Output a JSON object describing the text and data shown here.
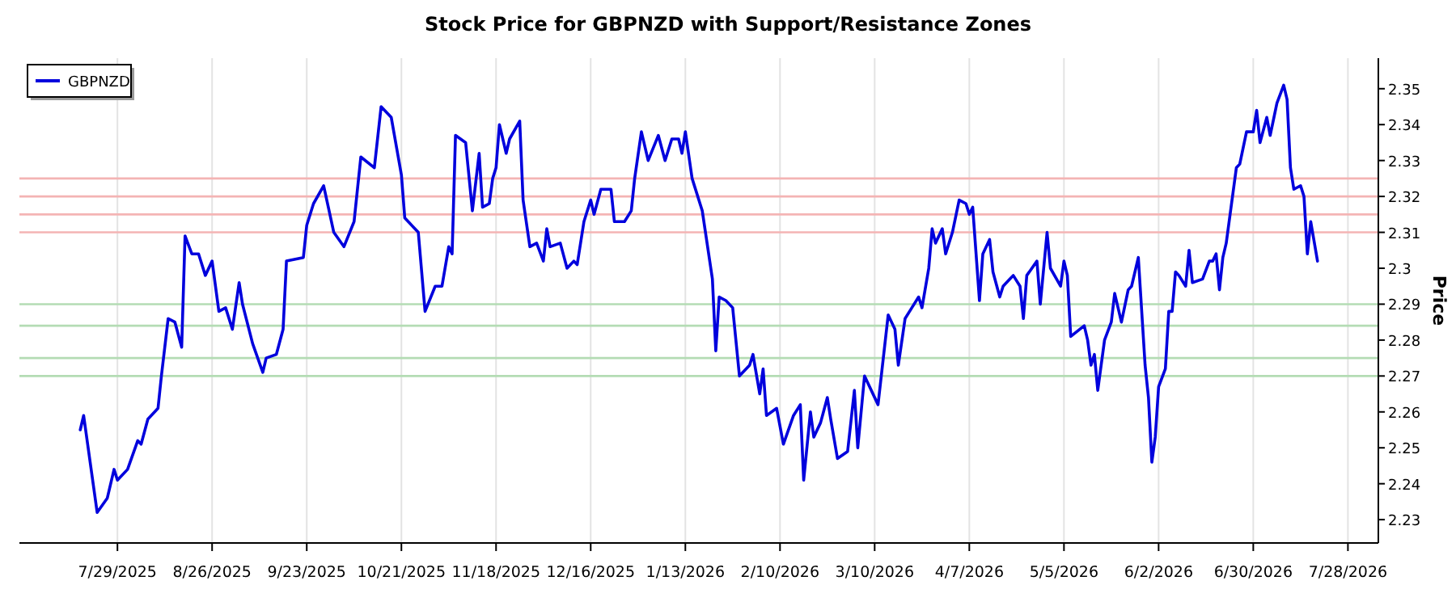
{
  "chart_data": {
    "type": "line",
    "title": "Stock Price for GBPNZD with Support/Resistance Zones",
    "ylabel": "Price",
    "xlim": [
      "2025-06-30",
      "2026-08-06"
    ],
    "ylim": [
      2.2235,
      2.3585
    ],
    "xticks": [
      {
        "value": "2025-07-29",
        "label": "7/29/2025"
      },
      {
        "value": "2025-08-26",
        "label": "8/26/2025"
      },
      {
        "value": "2025-09-23",
        "label": "9/23/2025"
      },
      {
        "value": "2025-10-21",
        "label": "10/21/2025"
      },
      {
        "value": "2025-11-18",
        "label": "11/18/2025"
      },
      {
        "value": "2025-12-16",
        "label": "12/16/2025"
      },
      {
        "value": "2026-01-13",
        "label": "1/13/2026"
      },
      {
        "value": "2026-02-10",
        "label": "2/10/2026"
      },
      {
        "value": "2026-03-10",
        "label": "3/10/2026"
      },
      {
        "value": "2026-04-07",
        "label": "4/7/2026"
      },
      {
        "value": "2026-05-05",
        "label": "5/5/2026"
      },
      {
        "value": "2026-06-02",
        "label": "6/2/2026"
      },
      {
        "value": "2026-06-30",
        "label": "6/30/2026"
      },
      {
        "value": "2026-07-28",
        "label": "7/28/2026"
      }
    ],
    "yticks": [
      2.23,
      2.24,
      2.25,
      2.26,
      2.27,
      2.28,
      2.29,
      2.3,
      2.31,
      2.32,
      2.33,
      2.34,
      2.35
    ],
    "grid": "x",
    "legend": "top left",
    "line_style": "solid",
    "marker": "none",
    "ref_lines": [
      {
        "axis": "y",
        "value": 2.325,
        "color": "#f4b4b4"
      },
      {
        "axis": "y",
        "value": 2.32,
        "color": "#f4b4b4"
      },
      {
        "axis": "y",
        "value": 2.315,
        "color": "#f4b4b4"
      },
      {
        "axis": "y",
        "value": 2.31,
        "color": "#f4b4b4"
      },
      {
        "axis": "y",
        "value": 2.29,
        "color": "#b4dcb4"
      },
      {
        "axis": "y",
        "value": 2.284,
        "color": "#b4dcb4"
      },
      {
        "axis": "y",
        "value": 2.275,
        "color": "#b4dcb4"
      },
      {
        "axis": "y",
        "value": 2.27,
        "color": "#b4dcb4"
      }
    ],
    "series": [
      {
        "name": "GBPNZD",
        "color": "#0000dd",
        "x": [
          "2025-07-18",
          "2025-07-19",
          "2025-07-23",
          "2025-07-26",
          "2025-07-28",
          "2025-07-29",
          "2025-08-01",
          "2025-08-04",
          "2025-08-05",
          "2025-08-07",
          "2025-08-10",
          "2025-08-11",
          "2025-08-13",
          "2025-08-15",
          "2025-08-17",
          "2025-08-18",
          "2025-08-20",
          "2025-08-22",
          "2025-08-24",
          "2025-08-26",
          "2025-08-28",
          "2025-08-30",
          "2025-09-01",
          "2025-09-03",
          "2025-09-04",
          "2025-09-07",
          "2025-09-10",
          "2025-09-11",
          "2025-09-14",
          "2025-09-16",
          "2025-09-17",
          "2025-09-22",
          "2025-09-23",
          "2025-09-25",
          "2025-09-28",
          "2025-10-01",
          "2025-10-04",
          "2025-10-07",
          "2025-10-09",
          "2025-10-13",
          "2025-10-15",
          "2025-10-18",
          "2025-10-21",
          "2025-10-22",
          "2025-10-26",
          "2025-10-28",
          "2025-10-31",
          "2025-11-02",
          "2025-11-04",
          "2025-11-05",
          "2025-11-06",
          "2025-11-09",
          "2025-11-11",
          "2025-11-13",
          "2025-11-14",
          "2025-11-16",
          "2025-11-17",
          "2025-11-18",
          "2025-11-19",
          "2025-11-21",
          "2025-11-22",
          "2025-11-25",
          "2025-11-26",
          "2025-11-28",
          "2025-11-30",
          "2025-12-02",
          "2025-12-03",
          "2025-12-04",
          "2025-12-07",
          "2025-12-09",
          "2025-12-11",
          "2025-12-12",
          "2025-12-14",
          "2025-12-16",
          "2025-12-17",
          "2025-12-19",
          "2025-12-22",
          "2025-12-23",
          "2025-12-26",
          "2025-12-28",
          "2025-12-29",
          "2025-12-31",
          "2026-01-02",
          "2026-01-05",
          "2026-01-07",
          "2026-01-09",
          "2026-01-11",
          "2026-01-12",
          "2026-01-13",
          "2026-01-15",
          "2026-01-18",
          "2026-01-21",
          "2026-01-22",
          "2026-01-23",
          "2026-01-25",
          "2026-01-27",
          "2026-01-29",
          "2026-02-01",
          "2026-02-02",
          "2026-02-04",
          "2026-02-05",
          "2026-02-06",
          "2026-02-09",
          "2026-02-11",
          "2026-02-14",
          "2026-02-16",
          "2026-02-17",
          "2026-02-19",
          "2026-02-20",
          "2026-02-22",
          "2026-02-24",
          "2026-02-25",
          "2026-02-27",
          "2026-03-02",
          "2026-03-04",
          "2026-03-05",
          "2026-03-07",
          "2026-03-11",
          "2026-03-14",
          "2026-03-16",
          "2026-03-17",
          "2026-03-19",
          "2026-03-21",
          "2026-03-23",
          "2026-03-24",
          "2026-03-26",
          "2026-03-27",
          "2026-03-28",
          "2026-03-30",
          "2026-03-31",
          "2026-04-02",
          "2026-04-04",
          "2026-04-06",
          "2026-04-07",
          "2026-04-08",
          "2026-04-10",
          "2026-04-11",
          "2026-04-13",
          "2026-04-14",
          "2026-04-16",
          "2026-04-17",
          "2026-04-19",
          "2026-04-20",
          "2026-04-22",
          "2026-04-23",
          "2026-04-24",
          "2026-04-27",
          "2026-04-28",
          "2026-04-30",
          "2026-05-01",
          "2026-05-04",
          "2026-05-05",
          "2026-05-06",
          "2026-05-07",
          "2026-05-11",
          "2026-05-12",
          "2026-05-13",
          "2026-05-14",
          "2026-05-15",
          "2026-05-17",
          "2026-05-19",
          "2026-05-20",
          "2026-05-22",
          "2026-05-24",
          "2026-05-25",
          "2026-05-27",
          "2026-05-29",
          "2026-05-30",
          "2026-05-31",
          "2026-06-01",
          "2026-06-02",
          "2026-06-04",
          "2026-06-05",
          "2026-06-06",
          "2026-06-07",
          "2026-06-08",
          "2026-06-10",
          "2026-06-11",
          "2026-06-12",
          "2026-06-15",
          "2026-06-17",
          "2026-06-18",
          "2026-06-19",
          "2026-06-20",
          "2026-06-21",
          "2026-06-22",
          "2026-06-25",
          "2026-06-26",
          "2026-06-28",
          "2026-06-30",
          "2026-07-01",
          "2026-07-02",
          "2026-07-04",
          "2026-07-05",
          "2026-07-07",
          "2026-07-09",
          "2026-07-10",
          "2026-07-11",
          "2026-07-12",
          "2026-07-14",
          "2026-07-15",
          "2026-07-16",
          "2026-07-17",
          "2026-07-19"
        ],
        "values": [
          2.255,
          2.259,
          2.232,
          2.236,
          2.244,
          2.241,
          2.244,
          2.252,
          2.251,
          2.258,
          2.261,
          2.27,
          2.286,
          2.285,
          2.278,
          2.309,
          2.304,
          2.304,
          2.298,
          2.302,
          2.288,
          2.289,
          2.283,
          2.296,
          2.29,
          2.279,
          2.271,
          2.275,
          2.276,
          2.283,
          2.302,
          2.303,
          2.312,
          2.318,
          2.323,
          2.31,
          2.306,
          2.313,
          2.331,
          2.328,
          2.345,
          2.342,
          2.326,
          2.314,
          2.31,
          2.288,
          2.295,
          2.295,
          2.306,
          2.304,
          2.337,
          2.335,
          2.316,
          2.332,
          2.317,
          2.318,
          2.325,
          2.328,
          2.34,
          2.332,
          2.336,
          2.341,
          2.319,
          2.306,
          2.307,
          2.302,
          2.311,
          2.306,
          2.307,
          2.3,
          2.302,
          2.301,
          2.313,
          2.319,
          2.315,
          2.322,
          2.322,
          2.313,
          2.313,
          2.316,
          2.325,
          2.338,
          2.33,
          2.337,
          2.33,
          2.336,
          2.336,
          2.332,
          2.338,
          2.325,
          2.316,
          2.297,
          2.277,
          2.292,
          2.291,
          2.289,
          2.27,
          2.273,
          2.276,
          2.265,
          2.272,
          2.259,
          2.261,
          2.251,
          2.259,
          2.262,
          2.241,
          2.26,
          2.253,
          2.257,
          2.264,
          2.258,
          2.247,
          2.249,
          2.266,
          2.25,
          2.27,
          2.262,
          2.287,
          2.283,
          2.273,
          2.286,
          2.289,
          2.292,
          2.289,
          2.3,
          2.311,
          2.307,
          2.311,
          2.304,
          2.31,
          2.319,
          2.318,
          2.315,
          2.317,
          2.291,
          2.304,
          2.308,
          2.299,
          2.292,
          2.295,
          2.297,
          2.298,
          2.295,
          2.286,
          2.298,
          2.302,
          2.29,
          2.31,
          2.3,
          2.295,
          2.302,
          2.298,
          2.281,
          2.284,
          2.28,
          2.273,
          2.276,
          2.266,
          2.28,
          2.285,
          2.293,
          2.285,
          2.294,
          2.295,
          2.303,
          2.273,
          2.264,
          2.246,
          2.253,
          2.267,
          2.272,
          2.288,
          2.288,
          2.299,
          2.298,
          2.295,
          2.305,
          2.296,
          2.297,
          2.302,
          2.302,
          2.304,
          2.294,
          2.303,
          2.307,
          2.328,
          2.329,
          2.338,
          2.338,
          2.344,
          2.335,
          2.342,
          2.337,
          2.346,
          2.351,
          2.347,
          2.328,
          2.322,
          2.323,
          2.32,
          2.304,
          2.313,
          2.302
        ]
      }
    ]
  }
}
